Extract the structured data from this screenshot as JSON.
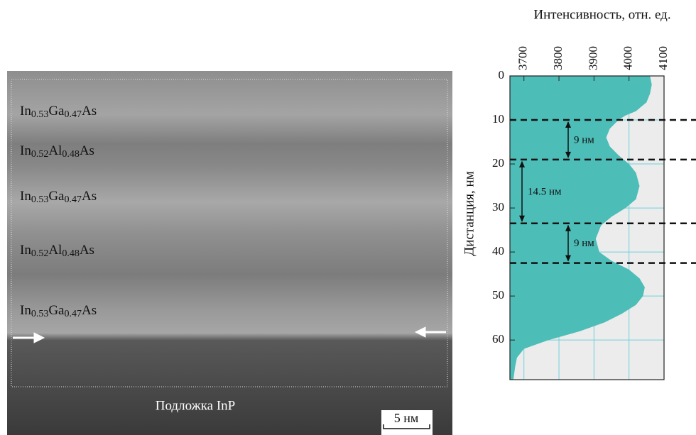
{
  "image": {
    "layers": [
      {
        "parts": [
          "In",
          "0.53",
          "Ga",
          "0.47",
          "As"
        ]
      },
      {
        "parts": [
          "In",
          "0.52",
          "Al",
          "0.48",
          "As"
        ]
      },
      {
        "parts": [
          "In",
          "0.53",
          "Ga",
          "0.47",
          "As"
        ]
      },
      {
        "parts": [
          "In",
          "0.52",
          "Al",
          "0.48",
          "As"
        ]
      },
      {
        "parts": [
          "In",
          "0.53",
          "Ga",
          "0.47",
          "As"
        ]
      }
    ],
    "substrate": "Подложка InP",
    "scale_bar": "5 нм"
  },
  "chart_data": {
    "type": "area",
    "xlabel": "Интенсивность, отн. ед.",
    "ylabel": "Дистанция, нм",
    "xlim": [
      3660,
      4100
    ],
    "xticks": [
      3700,
      3800,
      3900,
      4000,
      4100
    ],
    "ylim": [
      0,
      69
    ],
    "yticks": [
      0,
      10,
      20,
      30,
      40,
      50,
      60
    ],
    "y_inverted": true,
    "grid": true,
    "x": [
      0,
      2,
      4,
      6,
      8,
      9,
      10,
      12,
      14,
      16,
      18,
      20,
      22,
      25,
      28,
      30,
      32,
      34,
      37,
      40,
      42,
      44,
      46,
      48,
      50,
      52,
      54,
      56,
      58,
      60,
      62,
      64,
      66,
      69
    ],
    "series": [
      {
        "color": "#4dbdb8",
        "values": [
          4060,
          4065,
          4060,
          4050,
          4020,
          3990,
          3970,
          3945,
          3935,
          3945,
          3970,
          4000,
          4020,
          4030,
          4020,
          3990,
          3950,
          3920,
          3905,
          3915,
          3950,
          4000,
          4030,
          4045,
          4040,
          4020,
          3980,
          3930,
          3860,
          3770,
          3700,
          3680,
          3675,
          3670
        ]
      }
    ],
    "hlines": [
      10,
      19,
      33.5,
      42.5
    ],
    "annotations": [
      {
        "text": "9 нм",
        "from": 10,
        "to": 19
      },
      {
        "text": "14.5 нм",
        "from": 19,
        "to": 33.5
      },
      {
        "text": "9 нм",
        "from": 33.5,
        "to": 42.5
      }
    ]
  }
}
